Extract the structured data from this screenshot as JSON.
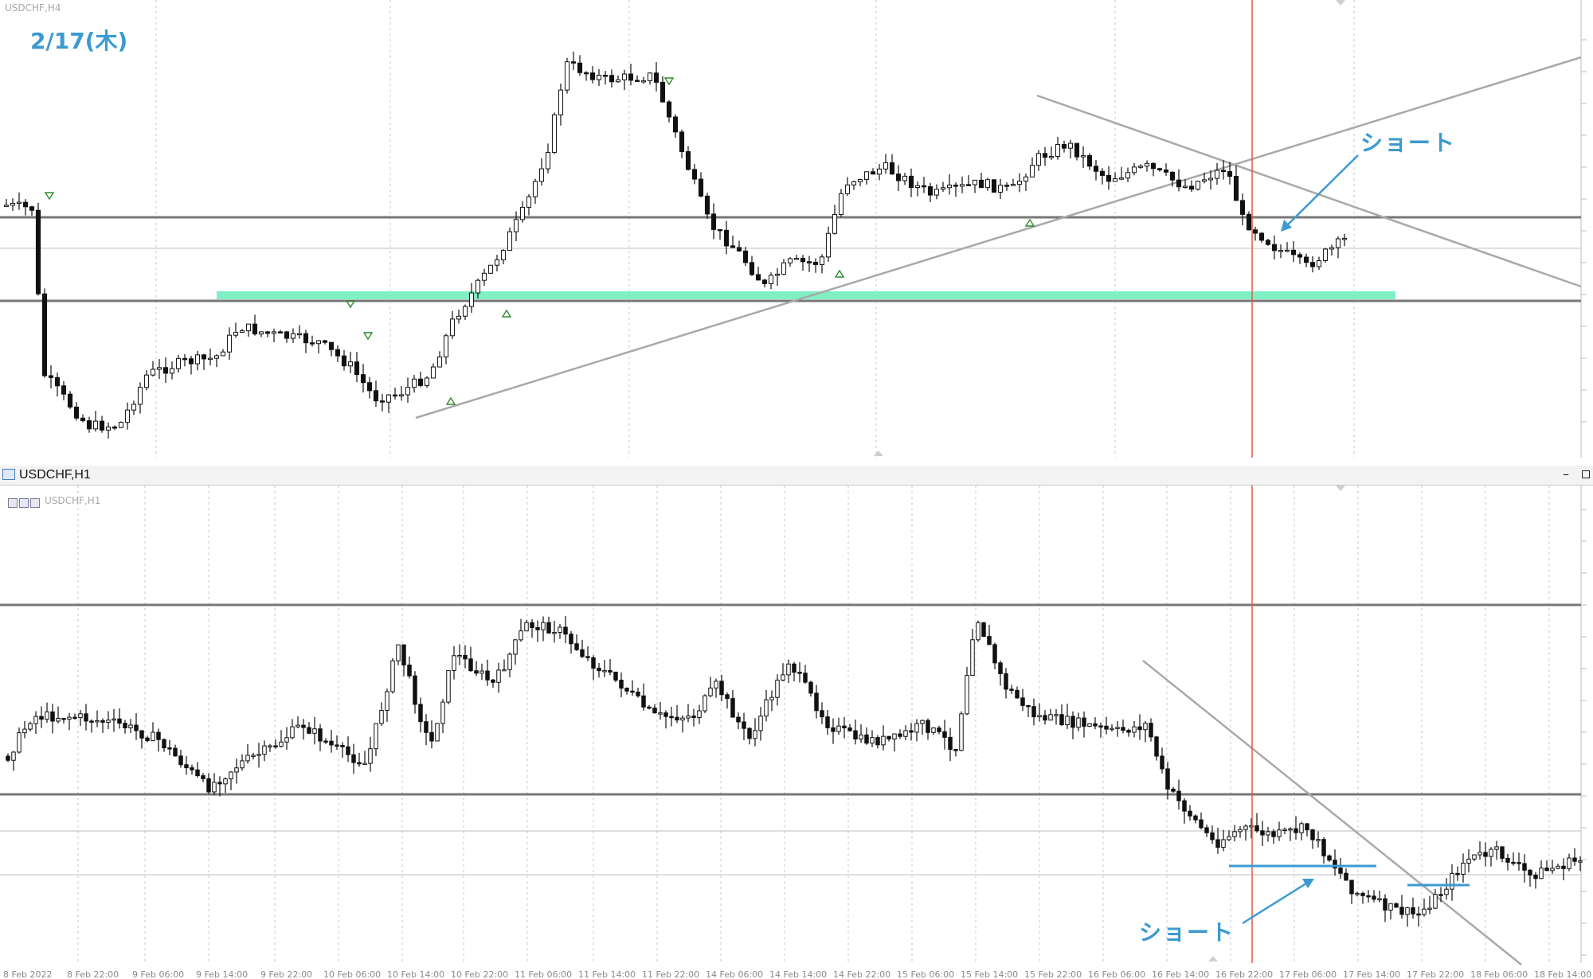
{
  "h4_pane": {
    "symbol_label": "USDCHF,H4",
    "date_annotation": "2/17(木)",
    "short_annotation": "ショート"
  },
  "h1_pane": {
    "title": "USDCHF,H1",
    "symbol_label": "USDCHF,H1",
    "short_annotation": "ショート"
  },
  "chart_data": [
    {
      "type": "candlestick",
      "title": "USDCHF,H4",
      "series": [
        {
          "name": "USDCHF",
          "trend": "range with rally then descending triangle break"
        }
      ],
      "horizontal_lines": [
        "resistance",
        "support"
      ],
      "support_zone_color": "#7ef0c4",
      "trendlines": [
        "ascending support",
        "descending resistance",
        "upper channel"
      ],
      "vertical_marker_color": "#e05a4a",
      "annotation_color": "#3c9ad0"
    },
    {
      "type": "candlestick",
      "title": "USDCHF,H1",
      "x_tick_labels": [
        "8 Feb 2022",
        "8 Feb 22:00",
        "9 Feb 06:00",
        "9 Feb 14:00",
        "9 Feb 22:00",
        "10 Feb 06:00",
        "10 Feb 14:00",
        "10 Feb 22:00",
        "11 Feb 06:00",
        "11 Feb 14:00",
        "11 Feb 22:00",
        "14 Feb 06:00",
        "14 Feb 14:00",
        "14 Feb 22:00",
        "15 Feb 06:00",
        "15 Feb 14:00",
        "15 Feb 22:00",
        "16 Feb 06:00",
        "16 Feb 14:00",
        "16 Feb 22:00",
        "17 Feb 06:00",
        "17 Feb 14:00",
        "17 Feb 22:00",
        "18 Feb 06:00",
        "18 Feb 14:00"
      ],
      "horizontal_lines": [
        "resistance",
        "support"
      ],
      "trendlines": [
        "descending resistance"
      ],
      "vertical_marker_color": "#e05a4a",
      "annotation_color": "#3c9ad0"
    }
  ]
}
